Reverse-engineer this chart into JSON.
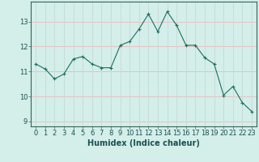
{
  "x": [
    0,
    1,
    2,
    3,
    4,
    5,
    6,
    7,
    8,
    9,
    10,
    11,
    12,
    13,
    14,
    15,
    16,
    17,
    18,
    19,
    20,
    21,
    22,
    23
  ],
  "y": [
    11.3,
    11.1,
    10.7,
    10.9,
    11.5,
    11.6,
    11.3,
    11.15,
    11.15,
    12.05,
    12.2,
    12.7,
    13.3,
    12.6,
    13.4,
    12.85,
    12.05,
    12.05,
    11.55,
    11.3,
    10.05,
    10.4,
    9.75,
    9.4
  ],
  "line_color": "#1a7060",
  "marker": "+",
  "marker_size": 3,
  "bg_color": "#d4eeea",
  "grid_color_h": "#e8c0c0",
  "grid_color_v": "#c8dcd8",
  "xlabel": "Humidex (Indice chaleur)",
  "xlabel_fontsize": 7,
  "tick_fontsize": 6,
  "ylim": [
    8.8,
    13.8
  ],
  "xlim": [
    -0.5,
    23.5
  ],
  "yticks": [
    9,
    10,
    11,
    12,
    13
  ],
  "xticks": [
    0,
    1,
    2,
    3,
    4,
    5,
    6,
    7,
    8,
    9,
    10,
    11,
    12,
    13,
    14,
    15,
    16,
    17,
    18,
    19,
    20,
    21,
    22,
    23
  ]
}
